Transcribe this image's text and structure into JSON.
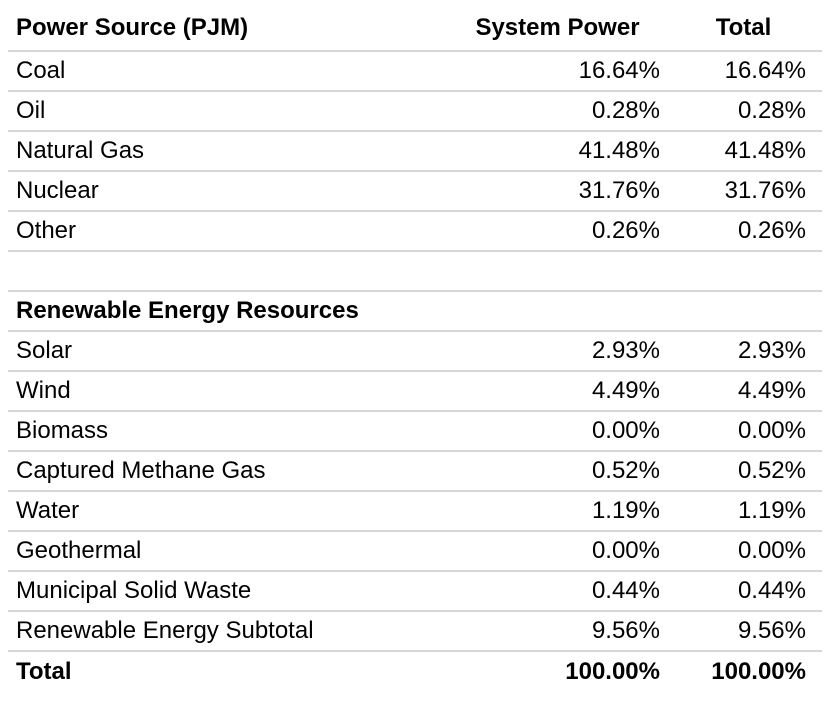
{
  "chart_data": {
    "type": "table",
    "title": "Power Source (PJM)",
    "columns": [
      "Power Source (PJM)",
      "System Power",
      "Total"
    ],
    "rows": [
      {
        "label": "Coal",
        "system_power": "16.64%",
        "total": "16.64%",
        "kind": "data"
      },
      {
        "label": "Oil",
        "system_power": "0.28%",
        "total": "0.28%",
        "kind": "data"
      },
      {
        "label": "Natural Gas",
        "system_power": "41.48%",
        "total": "41.48%",
        "kind": "data"
      },
      {
        "label": "Nuclear",
        "system_power": "31.76%",
        "total": "31.76%",
        "kind": "data"
      },
      {
        "label": "Other",
        "system_power": "0.26%",
        "total": "0.26%",
        "kind": "data"
      },
      {
        "label": "",
        "system_power": "",
        "total": "",
        "kind": "spacer"
      },
      {
        "label": "Renewable Energy Resources",
        "system_power": "",
        "total": "",
        "kind": "section"
      },
      {
        "label": "Solar",
        "system_power": "2.93%",
        "total": "2.93%",
        "kind": "data"
      },
      {
        "label": "Wind",
        "system_power": "4.49%",
        "total": "4.49%",
        "kind": "data"
      },
      {
        "label": "Biomass",
        "system_power": "0.00%",
        "total": "0.00%",
        "kind": "data"
      },
      {
        "label": "Captured Methane Gas",
        "system_power": "0.52%",
        "total": "0.52%",
        "kind": "data"
      },
      {
        "label": "Water",
        "system_power": "1.19%",
        "total": "1.19%",
        "kind": "data"
      },
      {
        "label": "Geothermal",
        "system_power": "0.00%",
        "total": "0.00%",
        "kind": "data"
      },
      {
        "label": "Municipal Solid Waste",
        "system_power": "0.44%",
        "total": "0.44%",
        "kind": "data"
      },
      {
        "label": "Renewable Energy Subtotal",
        "system_power": "9.56%",
        "total": "9.56%",
        "kind": "data"
      },
      {
        "label": "Total",
        "system_power": "100.00%",
        "total": "100.00%",
        "kind": "grand_total"
      }
    ],
    "colors": {
      "text": "#000000",
      "divider": "#d6d6d6",
      "background": "#ffffff"
    },
    "layout": {
      "value_alignment": "right",
      "header_alignment": "center",
      "grid": "horizontal-only"
    }
  }
}
